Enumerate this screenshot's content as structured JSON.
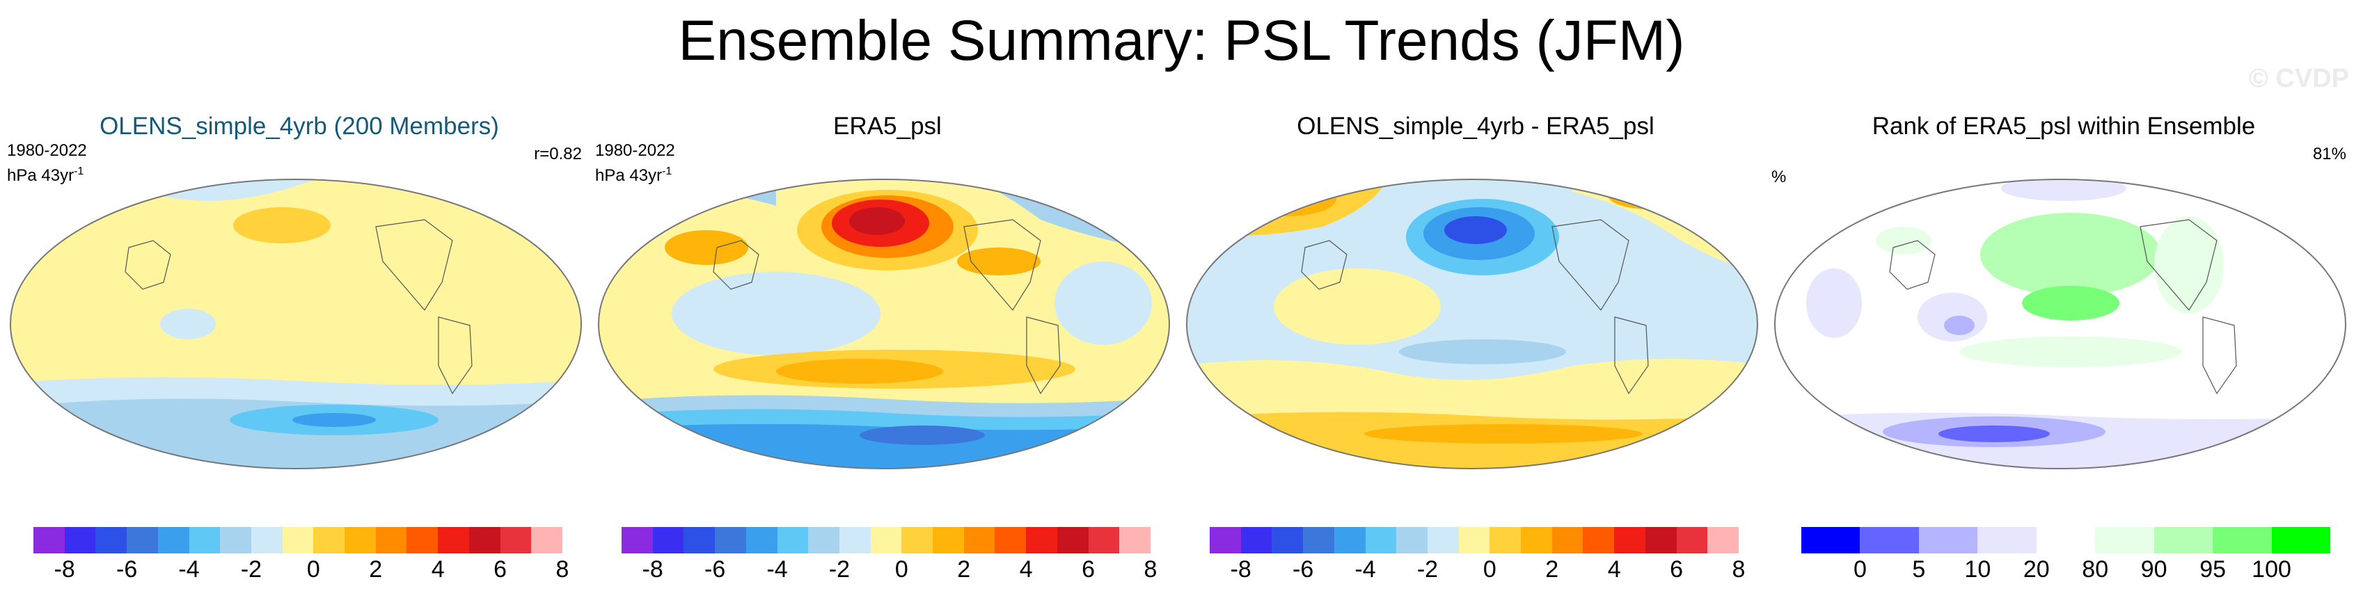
{
  "title": "Ensemble Summary: PSL Trends (JFM)",
  "credit": "© CVDP",
  "panels": [
    {
      "title": "OLENS_simple_4yrb (200 Members)",
      "period": "1980-2022",
      "units": "hPa 43yr",
      "units_sup": "-1",
      "stat": "r=0.82"
    },
    {
      "title": "ERA5_psl",
      "period": "1980-2022",
      "units": "hPa 43yr",
      "units_sup": "-1",
      "stat": ""
    },
    {
      "title": "OLENS_simple_4yrb - ERA5_psl",
      "period": "",
      "units": "",
      "units_sup": "",
      "stat": ""
    },
    {
      "title": "Rank of ERA5_psl within Ensemble",
      "period": "%",
      "units": "",
      "units_sup": "",
      "stat": "81%"
    }
  ],
  "colorbar_diverging": {
    "colors": [
      "#8a2be2",
      "#3a2ff0",
      "#2d50e6",
      "#3c78dc",
      "#3aa0ee",
      "#5fc8f5",
      "#a8d3ee",
      "#cfe9f8",
      "#fff59e",
      "#ffd23c",
      "#ffb40a",
      "#ff8c00",
      "#ff5a00",
      "#f01e14",
      "#c8141e",
      "#e8323c",
      "#ffb4b4"
    ],
    "ticks": [
      "-8",
      "-6",
      "-4",
      "-2",
      "0",
      "2",
      "4",
      "6",
      "8"
    ]
  },
  "colorbar_rank": {
    "colors": [
      "#0000ff",
      "#6464ff",
      "#b4b4ff",
      "#e6e6ff",
      "#ffffff",
      "#e6ffe6",
      "#b4ffb4",
      "#78ff78",
      "#00ff00"
    ],
    "ticks": [
      "0",
      "5",
      "10",
      "20",
      "80",
      "90",
      "95",
      "100"
    ]
  }
}
